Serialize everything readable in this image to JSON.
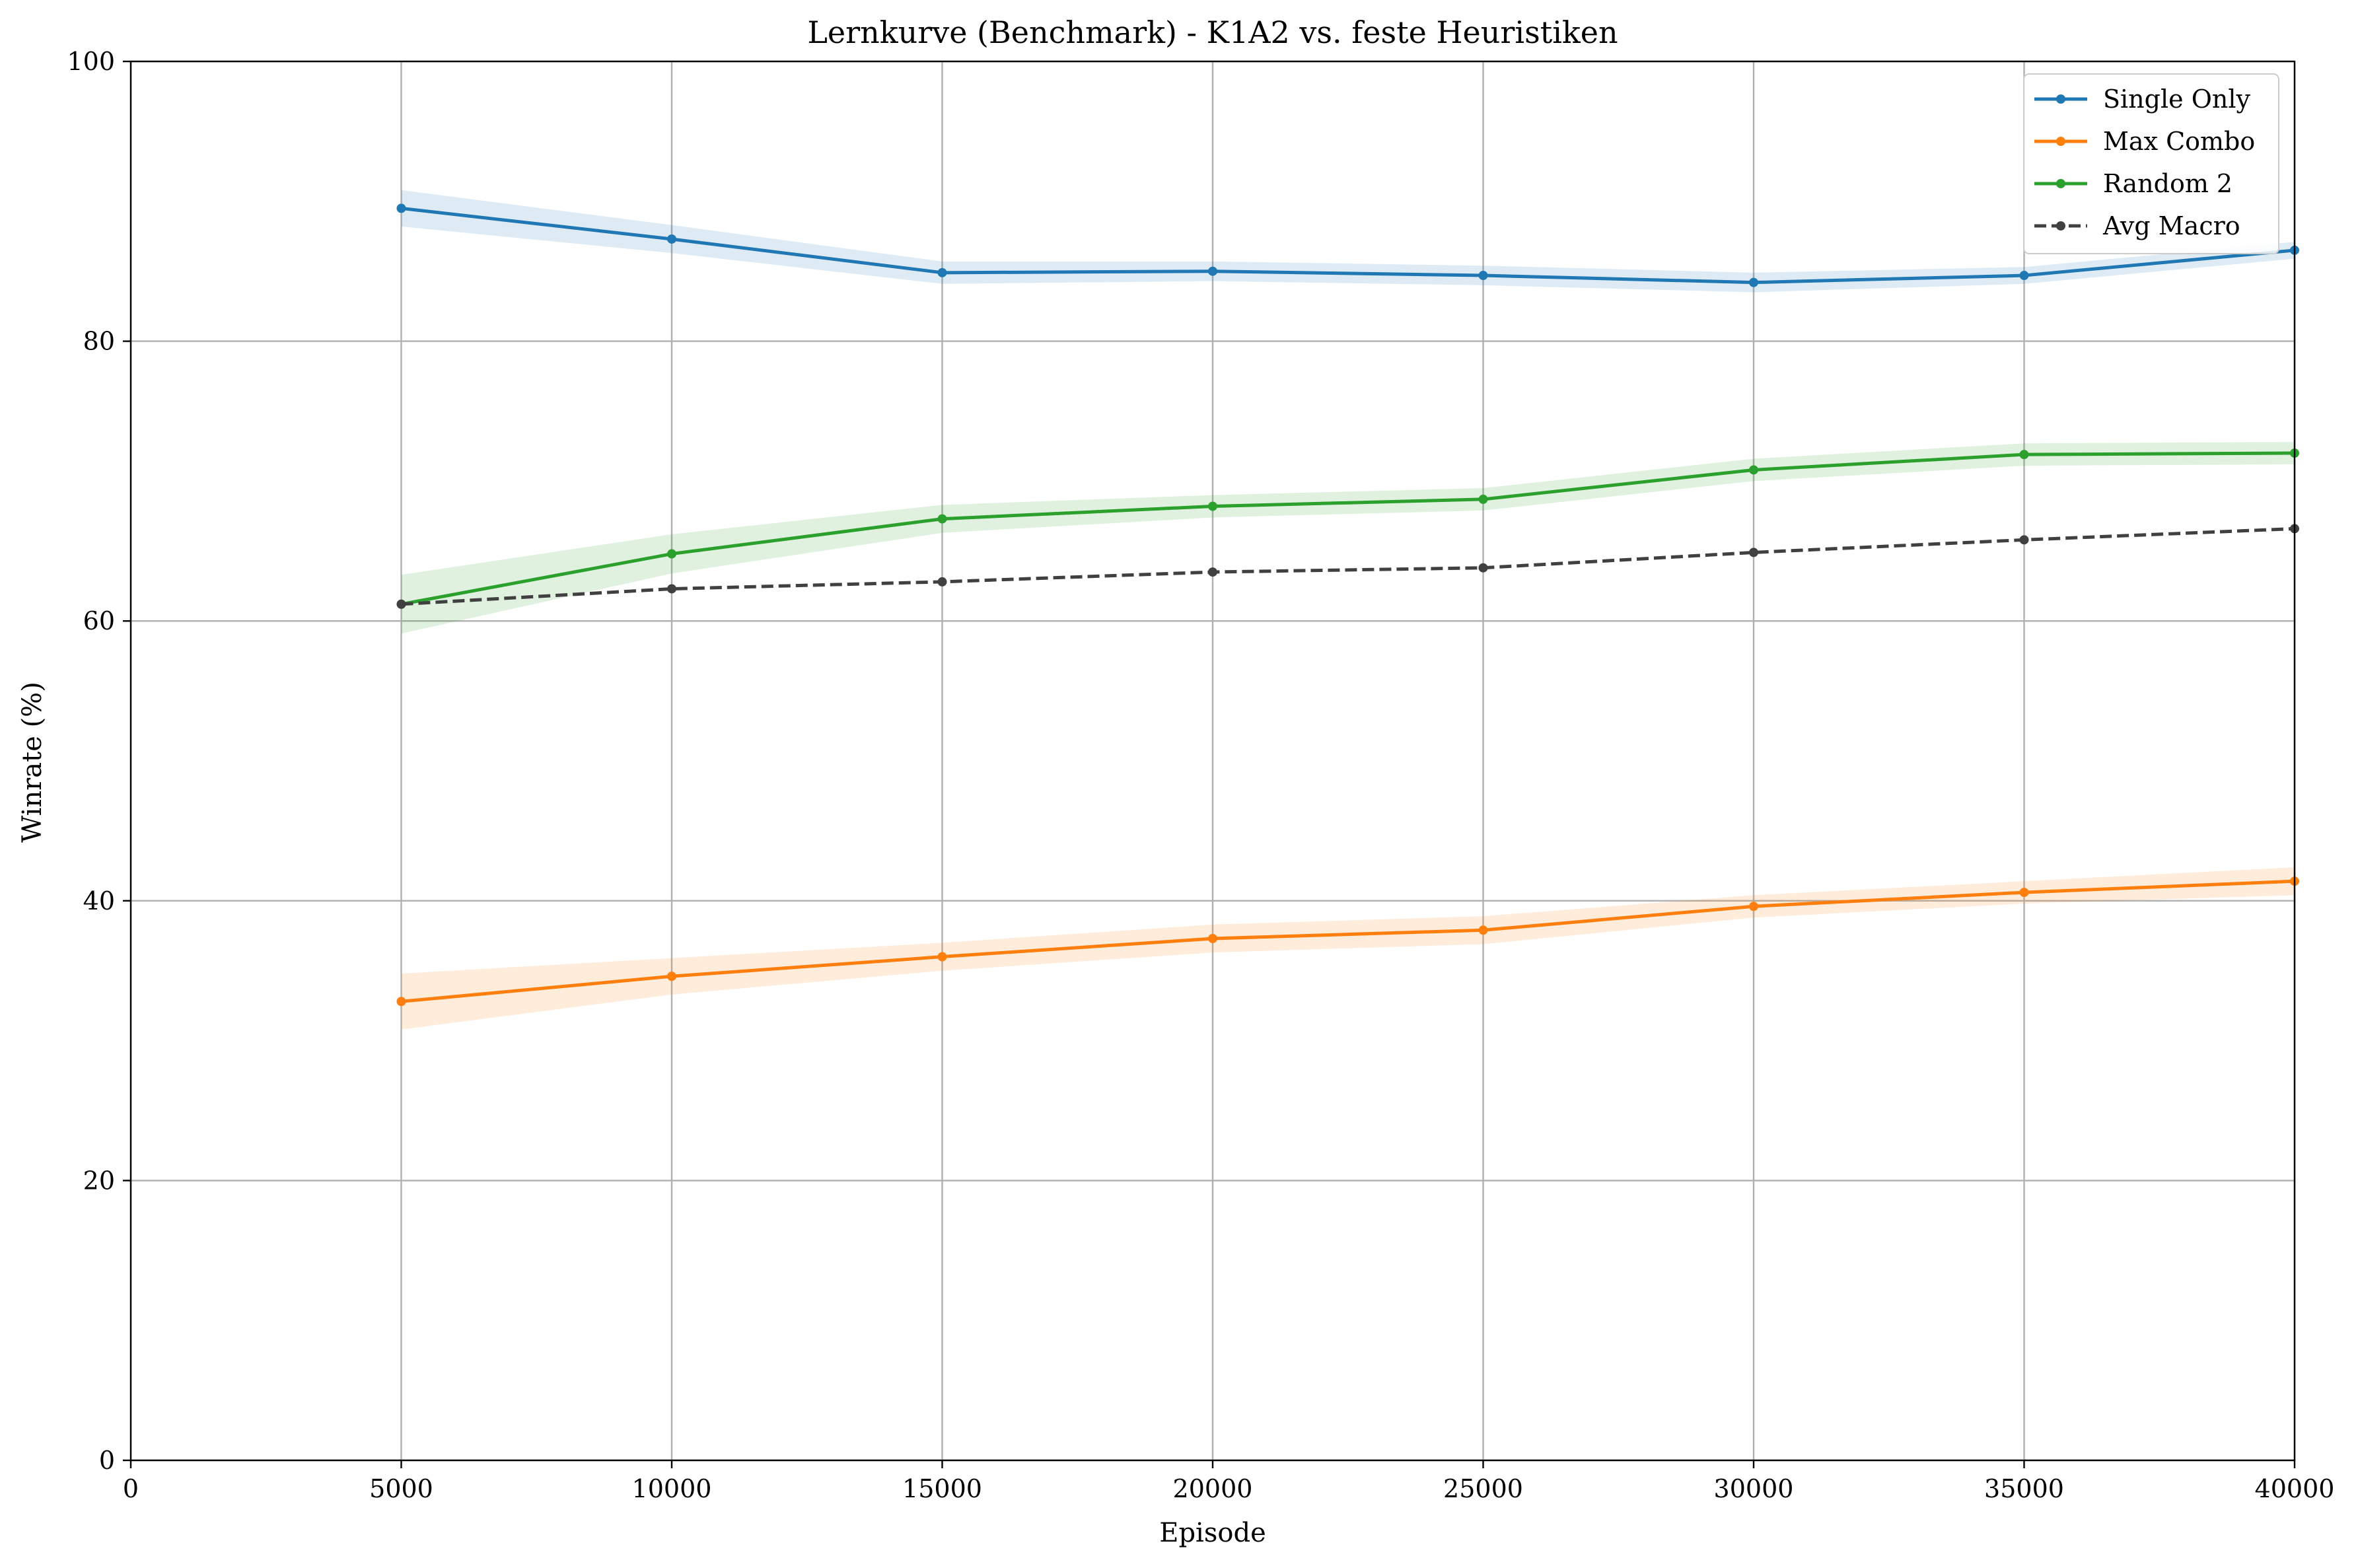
{
  "chart_data": {
    "type": "line",
    "title": "Lernkurve (Benchmark) - K1A2 vs. feste Heuristiken",
    "xlabel": "Episode",
    "ylabel": "Winrate (%)",
    "xlim": [
      0,
      40000
    ],
    "ylim": [
      0,
      100
    ],
    "xticks": [
      0,
      5000,
      10000,
      15000,
      20000,
      25000,
      30000,
      35000,
      40000
    ],
    "yticks": [
      0,
      20,
      40,
      60,
      80,
      100
    ],
    "grid": true,
    "legend_position": "top-right",
    "x": [
      5000,
      10000,
      15000,
      20000,
      25000,
      30000,
      35000,
      40000
    ],
    "series": [
      {
        "name": "Single Only",
        "color": "#1f77b4",
        "style": "solid",
        "values": [
          89.5,
          87.3,
          84.9,
          85.0,
          84.7,
          84.2,
          84.7,
          86.5
        ],
        "band_lower": [
          88.2,
          86.3,
          84.1,
          84.3,
          84.0,
          83.5,
          84.1,
          85.9
        ],
        "band_upper": [
          90.8,
          88.3,
          85.7,
          85.7,
          85.4,
          84.9,
          85.3,
          87.1
        ]
      },
      {
        "name": "Max Combo",
        "color": "#ff7f0e",
        "style": "solid",
        "values": [
          32.8,
          34.6,
          36.0,
          37.3,
          37.9,
          39.6,
          40.6,
          41.4
        ],
        "band_lower": [
          30.8,
          33.3,
          35.0,
          36.3,
          36.9,
          38.8,
          39.8,
          40.4
        ],
        "band_upper": [
          34.8,
          35.9,
          37.0,
          38.3,
          38.9,
          40.4,
          41.4,
          42.4
        ]
      },
      {
        "name": "Random 2",
        "color": "#2ca02c",
        "style": "solid",
        "values": [
          61.2,
          64.8,
          67.3,
          68.2,
          68.7,
          70.8,
          71.9,
          72.0
        ],
        "band_lower": [
          59.1,
          63.4,
          66.3,
          67.4,
          67.9,
          70.0,
          71.1,
          71.2
        ],
        "band_upper": [
          63.3,
          66.2,
          68.3,
          69.0,
          69.5,
          71.6,
          72.7,
          72.8
        ]
      },
      {
        "name": "Avg Macro",
        "color": "#404040",
        "style": "dashed",
        "values": [
          61.2,
          62.3,
          62.8,
          63.5,
          63.8,
          64.9,
          65.8,
          66.6
        ]
      }
    ]
  }
}
